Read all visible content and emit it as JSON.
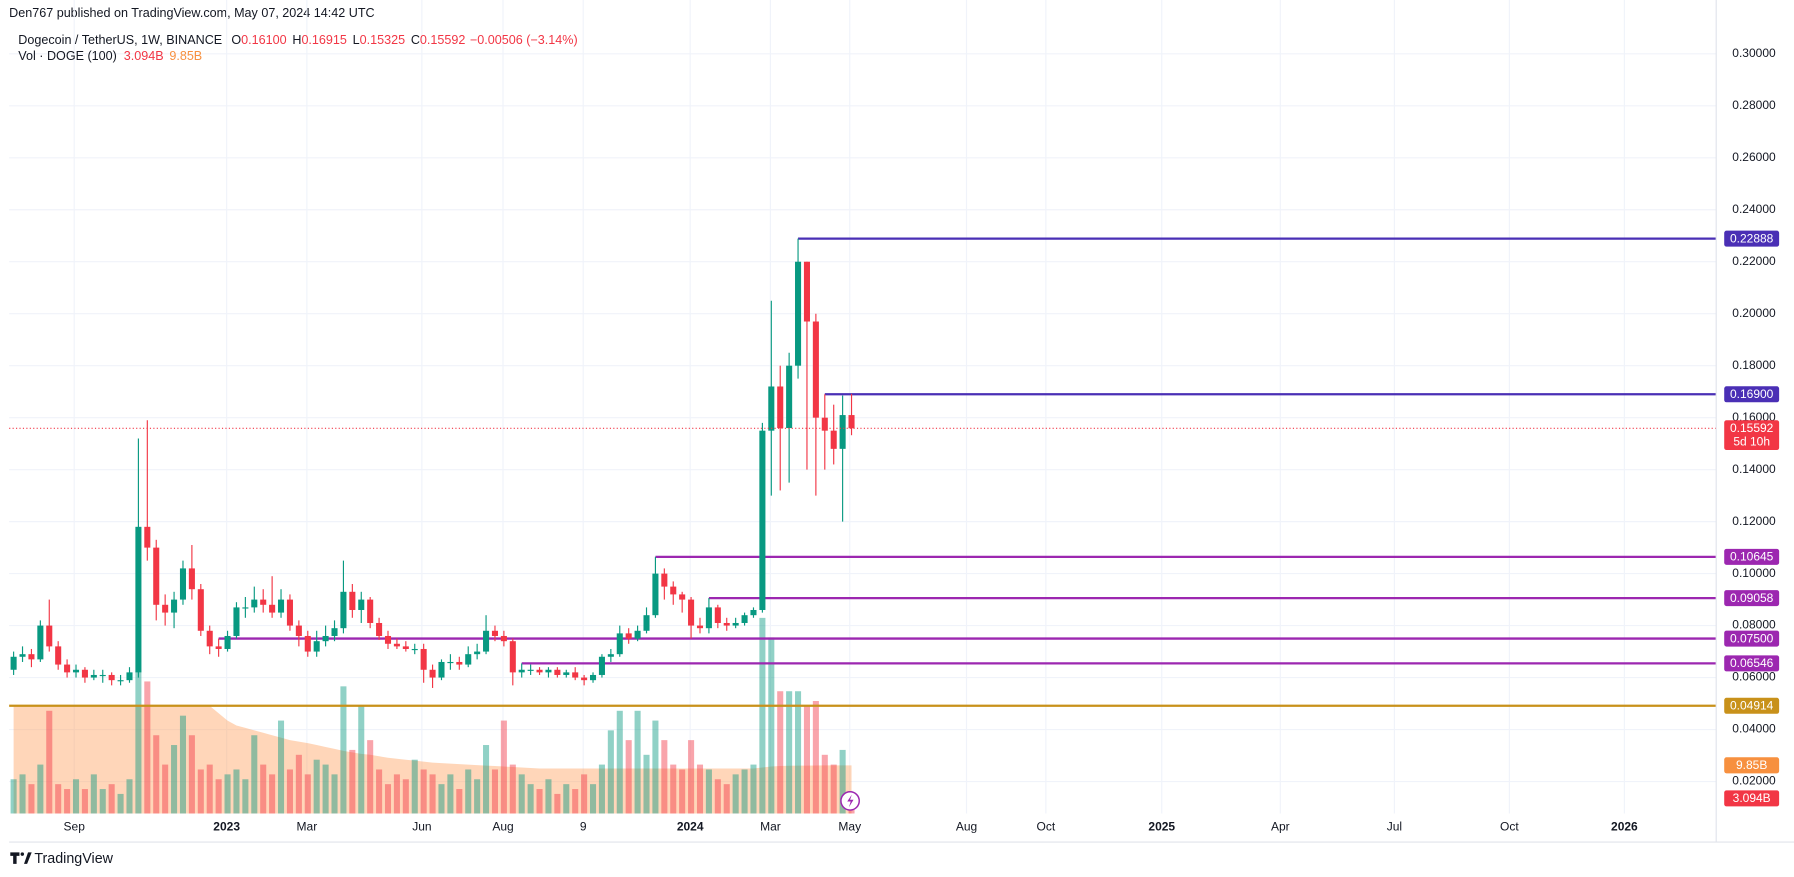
{
  "header": {
    "publisher": "Den767 published on TradingView.com, May 07, 2024 14:42 UTC",
    "symbol": "Dogecoin / TetherUS, 1W, BINANCE",
    "ohlc": [
      {
        "key": "O",
        "value": "0.16100"
      },
      {
        "key": "H",
        "value": "0.16915"
      },
      {
        "key": "L",
        "value": "0.15325"
      },
      {
        "key": "C",
        "value": "0.15592"
      }
    ],
    "change": "−0.00506 (−3.14%)"
  },
  "chart_data": {
    "type": "candlestick",
    "grid": true,
    "up_color": "#089981",
    "down_color": "#f23645",
    "categories": [
      null,
      null,
      null,
      null,
      null,
      null,
      null,
      null,
      null,
      null,
      null,
      null,
      null,
      null,
      null,
      null,
      null,
      null,
      null,
      null,
      null,
      null,
      null,
      null,
      null,
      null,
      null,
      null,
      null,
      null,
      null,
      null,
      null,
      null,
      null,
      null,
      null,
      null,
      null,
      null,
      null,
      null,
      null,
      null,
      null,
      null,
      null,
      null,
      null,
      null,
      null,
      null,
      null,
      null,
      null,
      null,
      null,
      null,
      null,
      null,
      null,
      null,
      null,
      null,
      null,
      null,
      null,
      null,
      null,
      null,
      null,
      null,
      null,
      null,
      null,
      null,
      null,
      null,
      null,
      null,
      null,
      null,
      null,
      null,
      null,
      null,
      null,
      null,
      null,
      null,
      null,
      null,
      null,
      null,
      null
    ],
    "open": [
      0.063,
      0.068,
      0.069,
      0.067,
      0.08,
      0.072,
      0.065,
      0.062,
      0.063,
      0.06,
      0.061,
      0.061,
      0.059,
      0.059,
      0.062,
      0.118,
      0.11,
      0.088,
      0.085,
      0.09,
      0.102,
      0.094,
      0.078,
      0.072,
      0.071,
      0.076,
      0.087,
      0.087,
      0.09,
      0.088,
      0.085,
      0.09,
      0.08,
      0.076,
      0.07,
      0.074,
      0.076,
      0.079,
      0.093,
      0.086,
      0.09,
      0.081,
      0.076,
      0.073,
      0.072,
      0.071,
      0.071,
      0.063,
      0.06,
      0.066,
      0.066,
      0.065,
      0.069,
      0.07,
      0.078,
      0.076,
      0.074,
      0.062,
      0.063,
      0.063,
      0.062,
      0.063,
      0.061,
      0.062,
      0.06,
      0.059,
      0.061,
      0.068,
      0.069,
      0.077,
      0.075,
      0.078,
      0.084,
      0.1,
      0.095,
      0.092,
      0.09,
      0.08,
      0.079,
      0.087,
      0.081,
      0.08,
      0.081,
      0.084,
      0.086,
      0.155,
      0.172,
      0.156,
      0.18,
      0.22,
      0.197,
      0.16,
      0.155,
      0.148,
      0.161
    ],
    "high": [
      0.07,
      0.072,
      0.071,
      0.082,
      0.09,
      0.074,
      0.067,
      0.065,
      0.064,
      0.063,
      0.063,
      0.062,
      0.061,
      0.064,
      0.152,
      0.159,
      0.113,
      0.092,
      0.093,
      0.105,
      0.111,
      0.096,
      0.08,
      0.075,
      0.078,
      0.089,
      0.091,
      0.095,
      0.094,
      0.099,
      0.094,
      0.092,
      0.082,
      0.078,
      0.078,
      0.08,
      0.082,
      0.105,
      0.096,
      0.093,
      0.091,
      0.083,
      0.078,
      0.075,
      0.074,
      0.073,
      0.073,
      0.065,
      0.067,
      0.069,
      0.068,
      0.072,
      0.073,
      0.084,
      0.08,
      0.078,
      0.075,
      0.06546,
      0.065,
      0.064,
      0.064,
      0.064,
      0.063,
      0.064,
      0.061,
      0.062,
      0.069,
      0.071,
      0.08,
      0.079,
      0.08,
      0.087,
      0.10645,
      0.102,
      0.097,
      0.093,
      0.091,
      0.083,
      0.09058,
      0.088,
      0.083,
      0.083,
      0.085,
      0.087,
      0.158,
      0.205,
      0.18,
      0.185,
      0.22888,
      0.22,
      0.2,
      0.169,
      0.165,
      0.1685,
      0.16915
    ],
    "low": [
      0.061,
      0.066,
      0.064,
      0.066,
      0.07,
      0.063,
      0.06,
      0.06,
      0.058,
      0.059,
      0.058,
      0.057,
      0.057,
      0.058,
      0.06,
      0.105,
      0.082,
      0.08,
      0.079,
      0.088,
      0.09,
      0.076,
      0.069,
      0.068,
      0.07,
      0.075,
      0.083,
      0.085,
      0.085,
      0.083,
      0.083,
      0.078,
      0.072,
      0.068,
      0.068,
      0.072,
      0.074,
      0.077,
      0.083,
      0.081,
      0.079,
      0.0745,
      0.071,
      0.071,
      0.07,
      0.069,
      0.058,
      0.056,
      0.059,
      0.063,
      0.063,
      0.064,
      0.067,
      0.069,
      0.074,
      0.072,
      0.057,
      0.06,
      0.061,
      0.061,
      0.06,
      0.06,
      0.06,
      0.059,
      0.057,
      0.058,
      0.06,
      0.066,
      0.068,
      0.073,
      0.074,
      0.077,
      0.083,
      0.09,
      0.088,
      0.085,
      0.075,
      0.077,
      0.077,
      0.079,
      0.078,
      0.079,
      0.08,
      0.083,
      0.085,
      0.13,
      0.132,
      0.135,
      0.175,
      0.14,
      0.13,
      0.14,
      0.142,
      0.12,
      0.15325
    ],
    "close": [
      0.068,
      0.069,
      0.067,
      0.08,
      0.072,
      0.065,
      0.062,
      0.063,
      0.06,
      0.061,
      0.061,
      0.059,
      0.059,
      0.062,
      0.118,
      0.11,
      0.088,
      0.085,
      0.09,
      0.102,
      0.094,
      0.078,
      0.072,
      0.071,
      0.076,
      0.087,
      0.087,
      0.09,
      0.088,
      0.085,
      0.09,
      0.08,
      0.076,
      0.07,
      0.074,
      0.076,
      0.079,
      0.093,
      0.086,
      0.09,
      0.081,
      0.076,
      0.073,
      0.072,
      0.071,
      0.071,
      0.063,
      0.06,
      0.066,
      0.066,
      0.065,
      0.069,
      0.07,
      0.078,
      0.076,
      0.074,
      0.062,
      0.063,
      0.063,
      0.062,
      0.063,
      0.061,
      0.062,
      0.06,
      0.059,
      0.061,
      0.068,
      0.069,
      0.077,
      0.075,
      0.078,
      0.084,
      0.1,
      0.095,
      0.092,
      0.09,
      0.08,
      0.079,
      0.087,
      0.081,
      0.08,
      0.081,
      0.084,
      0.086,
      0.155,
      0.172,
      0.156,
      0.18,
      0.22,
      0.197,
      0.16,
      0.155,
      0.148,
      0.161,
      0.15592
    ],
    "xlim": [
      -0.5,
      191
    ],
    "xticks": [
      {
        "value": 6.8,
        "label": "Sep"
      },
      {
        "value": 23.9,
        "label": "2023"
      },
      {
        "value": 32.9,
        "label": "Mar"
      },
      {
        "value": 45.8,
        "label": "Jun"
      },
      {
        "value": 54.9,
        "label": "Aug"
      },
      {
        "value": 63.9,
        "label": "9"
      },
      {
        "value": 75.9,
        "label": "2024"
      },
      {
        "value": 84.9,
        "label": "Mar"
      },
      {
        "value": 93.8,
        "label": "May"
      },
      {
        "value": 106.9,
        "label": "Aug"
      },
      {
        "value": 115.8,
        "label": "Oct"
      },
      {
        "value": 128.8,
        "label": "2025"
      },
      {
        "value": 142.1,
        "label": "Apr"
      },
      {
        "value": 154.9,
        "label": "Jul"
      },
      {
        "value": 167.8,
        "label": "Oct"
      },
      {
        "value": 180.7,
        "label": "2026"
      }
    ],
    "ylim": [
      0.0077,
      0.3163
    ],
    "yticks": [
      {
        "value": 0.02,
        "label": "0.02000"
      },
      {
        "value": 0.04,
        "label": "0.04000"
      },
      {
        "value": 0.06,
        "label": "0.06000"
      },
      {
        "value": 0.08,
        "label": "0.08000"
      },
      {
        "value": 0.1,
        "label": "0.10000"
      },
      {
        "value": 0.12,
        "label": "0.12000"
      },
      {
        "value": 0.14,
        "label": "0.14000"
      },
      {
        "value": 0.16,
        "label": "0.16000"
      },
      {
        "value": 0.18,
        "label": "0.18000"
      },
      {
        "value": 0.2,
        "label": "0.20000"
      },
      {
        "value": 0.22,
        "label": "0.22000"
      },
      {
        "value": 0.24,
        "label": "0.24000"
      },
      {
        "value": 0.26,
        "label": "0.26000"
      },
      {
        "value": 0.28,
        "label": "0.28000"
      },
      {
        "value": 0.3,
        "label": "0.30000"
      }
    ],
    "volume": {
      "name": "Vol · DOGE (100)",
      "axis": "y2",
      "ma_color": "#ff9850",
      "ma_label_color": "#f7903f",
      "last_label": "3.094B",
      "ma_label": "9.85B",
      "values": [
        7,
        8,
        6,
        10,
        21,
        6,
        5,
        7,
        5,
        8,
        5,
        6,
        4,
        7,
        29,
        27,
        16,
        10,
        14,
        20,
        16,
        9,
        10,
        7,
        8,
        9,
        7,
        16,
        10,
        8,
        19,
        9,
        12,
        8,
        11,
        10,
        8,
        26,
        13,
        22,
        15,
        9,
        6,
        8,
        7,
        11,
        9,
        8,
        6,
        8,
        5,
        9,
        7,
        14,
        9,
        19,
        10,
        8,
        6,
        5,
        7,
        4,
        6,
        5,
        8,
        6,
        10,
        17,
        21,
        15,
        21,
        12,
        19,
        15,
        10,
        9,
        15,
        10,
        9,
        7,
        6,
        8,
        9,
        10,
        40,
        36,
        25,
        25,
        25,
        22,
        23,
        12,
        10,
        13,
        3.094
      ],
      "ma": [
        22,
        22,
        22,
        22,
        22,
        22,
        22,
        22,
        22,
        22,
        22,
        22,
        22,
        22,
        22,
        22,
        22,
        22,
        22,
        22,
        22,
        22,
        22,
        20.5,
        19,
        18,
        17.5,
        17,
        16.5,
        16,
        15.5,
        15,
        14.7,
        14.4,
        14,
        13.6,
        13.2,
        12.8,
        12.5,
        12.2,
        12,
        11.7,
        11.4,
        11.2,
        11,
        10.8,
        10.6,
        10.4,
        10.3,
        10.2,
        10.1,
        10,
        9.9,
        9.8,
        9.7,
        9.6,
        9.5,
        9.4,
        9.3,
        9.2,
        9.2,
        9.2,
        9.2,
        9.2,
        9.2,
        9.2,
        9.2,
        9.2,
        9.2,
        9.2,
        9.2,
        9.2,
        9.2,
        9.2,
        9.2,
        9.2,
        9.2,
        9.2,
        9.2,
        9.2,
        9.2,
        9.2,
        9.2,
        9.2,
        9.4,
        9.6,
        9.7,
        9.75,
        9.8,
        9.8,
        9.82,
        9.83,
        9.84,
        9.85,
        9.85
      ]
    },
    "y2lim": [
      0,
      164
    ],
    "levels": [
      {
        "value": 0.22888,
        "label": "0.22888",
        "color": "#4a2fb5",
        "extend": "right"
      },
      {
        "value": 0.169,
        "label": "0.16900",
        "color": "#4a2fb5",
        "extend": "right"
      },
      {
        "value": 0.10645,
        "label": "0.10645",
        "color": "#9c27b0",
        "extend": "right"
      },
      {
        "value": 0.09058,
        "label": "0.09058",
        "color": "#9c27b0",
        "extend": "right"
      },
      {
        "value": 0.075,
        "label": "0.07500",
        "color": "#9c27b0",
        "extend": "right"
      },
      {
        "value": 0.06546,
        "label": "0.06546",
        "color": "#9c27b0",
        "extend": "right"
      },
      {
        "value": 0.04914,
        "label": "0.04914",
        "color": "#c8911a",
        "extend": "both"
      }
    ],
    "last_price": {
      "value": 0.15592,
      "label": "0.15592",
      "countdown": "5d 10h"
    }
  },
  "footer": {
    "brand": "TradingView"
  }
}
